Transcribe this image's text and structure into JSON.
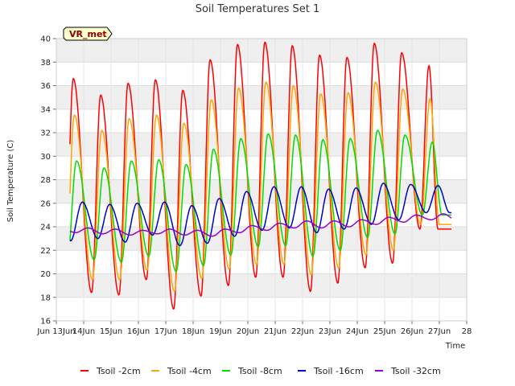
{
  "chart_data": {
    "type": "line",
    "title": "Soil Temperatures Set 1",
    "xlabel": "Time",
    "ylabel": "Soil Temperature (C)",
    "station_tag": "VR_met",
    "xlim": [
      "Jun 13",
      "Jun 28"
    ],
    "ylim": [
      16,
      40
    ],
    "x_ticks": [
      "Jun 13Jun",
      "14Jun",
      "15Jun",
      "16Jun",
      "17Jun",
      "18Jun",
      "19Jun",
      "20Jun",
      "21Jun",
      "22Jun",
      "23Jun",
      "24Jun",
      "25Jun",
      "26Jun",
      "27Jun",
      "28"
    ],
    "y_ticks": [
      16,
      18,
      20,
      22,
      24,
      26,
      28,
      30,
      32,
      34,
      36,
      38,
      40
    ],
    "grid": true,
    "legend_position": "bottom",
    "x_day_offset_start": 0.5,
    "x_days": [
      13,
      14,
      15,
      16,
      17,
      18,
      19,
      20,
      21,
      22,
      23,
      24,
      25,
      26
    ],
    "series": [
      {
        "name": "Tsoil -2cm",
        "color": "#ff0000",
        "min": [
          17.5,
          18.4,
          18.2,
          19.5,
          17.0,
          18.1,
          19.0,
          19.7,
          19.7,
          18.5,
          19.2,
          20.5,
          20.9,
          23.8
        ],
        "max": [
          36.6,
          35.2,
          36.2,
          36.5,
          35.6,
          38.2,
          39.5,
          39.7,
          39.4,
          38.6,
          38.4,
          39.6,
          38.8,
          37.7
        ],
        "min_phase": 0.29,
        "max_phase": 0.62
      },
      {
        "name": "Tsoil -4cm",
        "color": "#ffa500",
        "min": [
          18.8,
          19.5,
          19.5,
          20.3,
          18.5,
          19.6,
          20.4,
          20.8,
          20.8,
          19.9,
          20.5,
          21.6,
          22.0,
          24.2
        ],
        "max": [
          33.5,
          32.2,
          33.2,
          33.5,
          32.8,
          34.8,
          35.8,
          36.3,
          36.0,
          35.3,
          35.4,
          36.3,
          35.7,
          34.9
        ],
        "min_phase": 0.32,
        "max_phase": 0.66
      },
      {
        "name": "Tsoil -8cm",
        "color": "#00dd00",
        "min": [
          20.6,
          21.2,
          21.0,
          21.5,
          20.2,
          20.7,
          21.6,
          22.3,
          22.4,
          21.5,
          22.0,
          23.1,
          23.4,
          25.0
        ],
        "max": [
          29.6,
          29.0,
          29.6,
          29.7,
          29.3,
          30.6,
          31.5,
          31.9,
          31.8,
          31.4,
          31.5,
          32.2,
          31.8,
          31.2
        ],
        "min_phase": 0.38,
        "max_phase": 0.74
      },
      {
        "name": "Tsoil -16cm",
        "color": "#0000cc",
        "min": [
          22.8,
          23.0,
          22.7,
          23.3,
          22.4,
          22.6,
          23.2,
          23.7,
          23.9,
          23.5,
          23.8,
          24.2,
          24.6,
          25.2
        ],
        "max": [
          26.1,
          25.9,
          26.0,
          26.1,
          25.8,
          26.4,
          27.0,
          27.4,
          27.4,
          27.2,
          27.3,
          27.7,
          27.6,
          27.5
        ],
        "min_phase": 0.52,
        "max_phase": 0.95
      },
      {
        "name": "Tsoil -32cm",
        "color": "#9900cc",
        "min": [
          23.5,
          23.4,
          23.3,
          23.4,
          23.3,
          23.2,
          23.5,
          23.7,
          23.9,
          23.9,
          24.0,
          24.2,
          24.4,
          24.6
        ],
        "max": [
          23.9,
          23.8,
          23.7,
          23.8,
          23.7,
          23.8,
          24.1,
          24.3,
          24.5,
          24.5,
          24.6,
          24.8,
          25.0,
          25.1
        ],
        "min_phase": 0.7,
        "max_phase": 1.15
      }
    ]
  }
}
